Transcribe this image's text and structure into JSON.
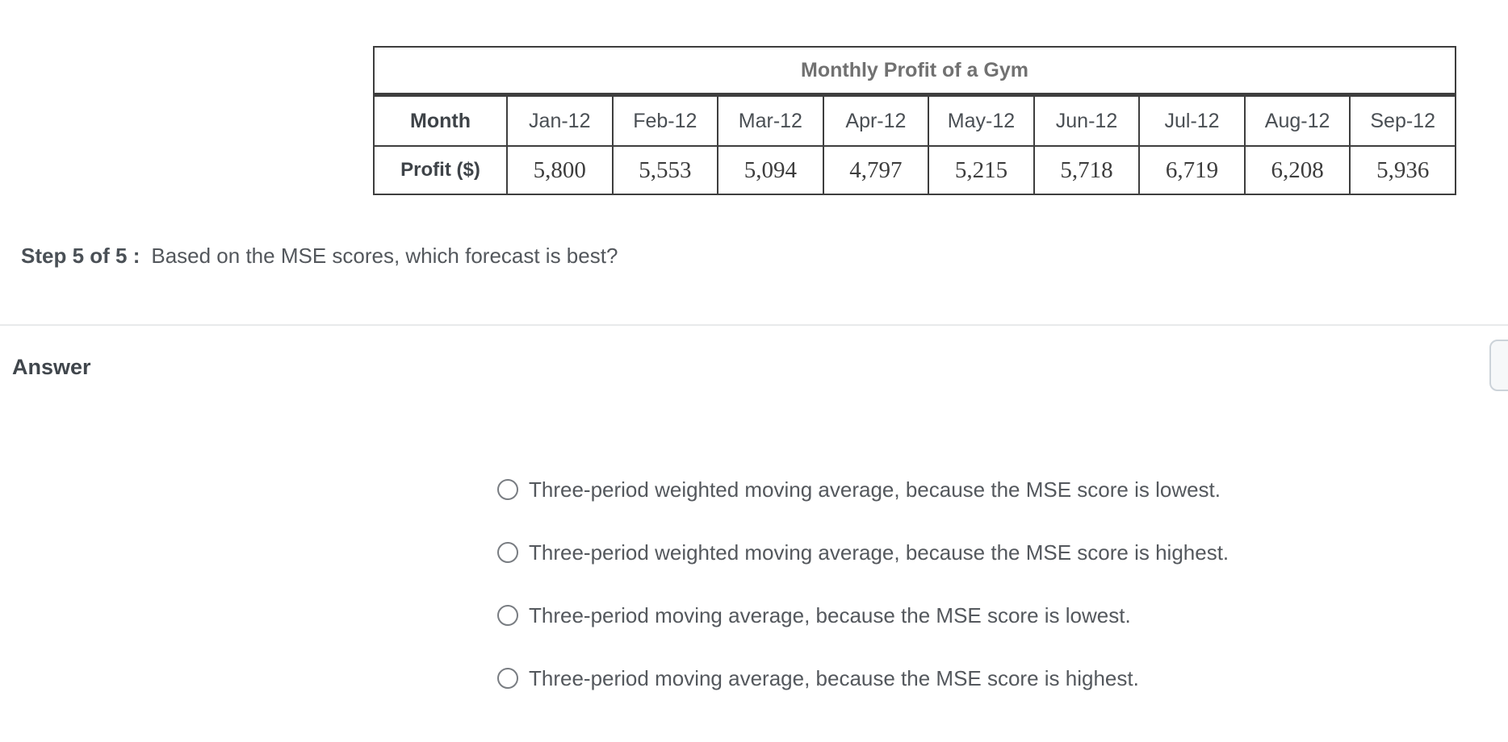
{
  "table": {
    "title": "Monthly Profit of a Gym",
    "month_label": "Month",
    "profit_label": "Profit ($)",
    "months": [
      "Jan-12",
      "Feb-12",
      "Mar-12",
      "Apr-12",
      "May-12",
      "Jun-12",
      "Jul-12",
      "Aug-12",
      "Sep-12"
    ],
    "profits": [
      "5,800",
      "5,553",
      "5,094",
      "4,797",
      "5,215",
      "5,718",
      "6,719",
      "6,208",
      "5,936"
    ]
  },
  "step": {
    "label": "Step 5 of 5 :",
    "question": "Based on the MSE scores, which forecast is best?"
  },
  "answer": {
    "heading": "Answer",
    "options": [
      {
        "label": "Three-period weighted moving average, because the MSE score is lowest.",
        "selected": false
      },
      {
        "label": "Three-period weighted moving average, because the MSE score is highest.",
        "selected": false
      },
      {
        "label": "Three-period moving average, because the MSE score is lowest.",
        "selected": false
      },
      {
        "label": "Three-period moving average, because the MSE score is highest.",
        "selected": false
      }
    ]
  },
  "colors": {
    "table_border": "#3e3e3e",
    "table_title_text": "#717171",
    "header_text": "#4a4f54",
    "body_text": "#53575c",
    "divider": "#e8eaeb",
    "radio_border": "#797d82",
    "side_button_border": "#ccd3d9",
    "side_button_bg": "#f6f8f9"
  }
}
